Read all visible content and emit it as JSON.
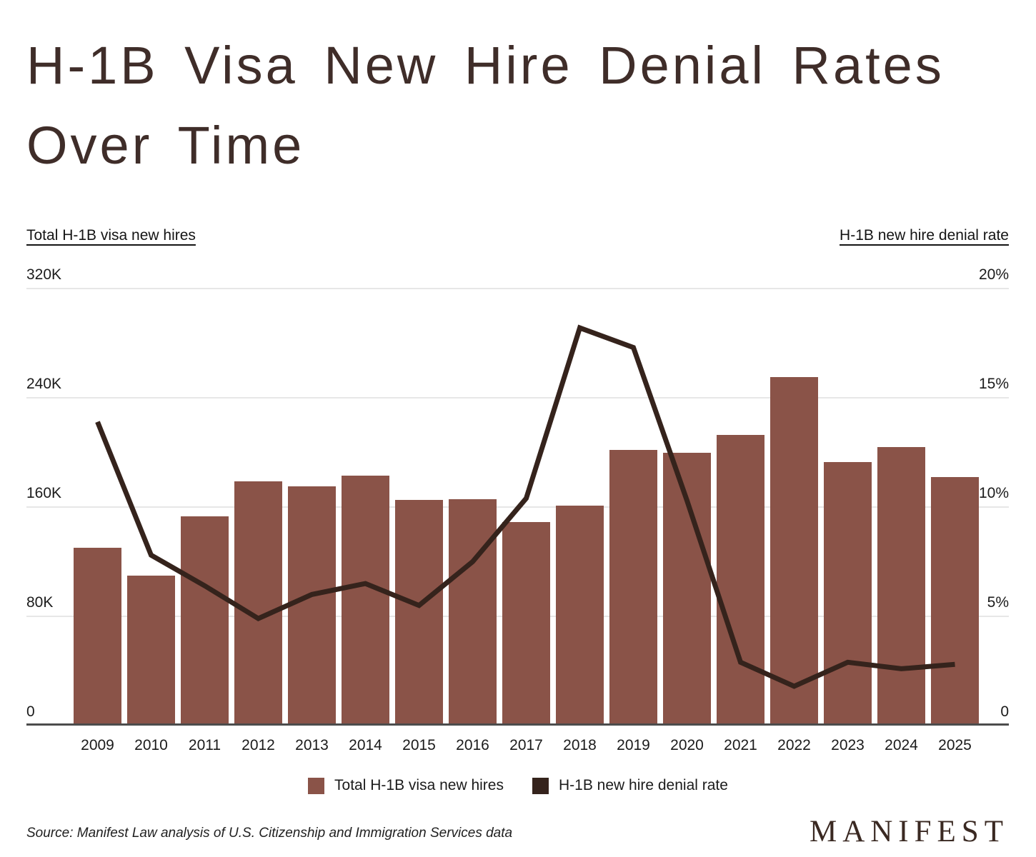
{
  "title": {
    "line1": "H-1B Visa New Hire Denial Rates",
    "line2": "Over Time"
  },
  "axes": {
    "left_header": "Total H-1B visa new hires",
    "right_header": "H-1B new hire denial rate",
    "left_ticks": [
      "320K",
      "240K",
      "160K",
      "80K",
      "0"
    ],
    "right_ticks": [
      "20%",
      "15%",
      "10%",
      "5%",
      "0"
    ]
  },
  "legend": [
    {
      "label": "Total H-1B visa new hires",
      "color": "#8a5348",
      "type": "bar"
    },
    {
      "label": "H-1B new hire denial rate",
      "color": "#35231c",
      "type": "line"
    }
  ],
  "footer": {
    "source": "Source: Manifest Law analysis of U.S. Citizenship and Immigration Services data",
    "logo": "MANIFEST"
  },
  "colors": {
    "bar": "#8a5348",
    "line": "#35231c",
    "gridline": "#e7e7e7",
    "axis_baseline": "#4c4c4c",
    "title_text": "#3f2d29",
    "tick_text": "#1b1b1b"
  },
  "chart_data": {
    "type": "bar",
    "subtype": "bar-and-line-dual-axis",
    "title": "H-1B Visa New Hire Denial Rates Over Time",
    "categories": [
      2009,
      2010,
      2011,
      2012,
      2013,
      2014,
      2015,
      2016,
      2017,
      2018,
      2019,
      2020,
      2021,
      2022,
      2023,
      2024,
      2025
    ],
    "series": [
      {
        "name": "Total H-1B visa new hires",
        "type": "bar",
        "axis": "left",
        "values": [
          130000,
          110000,
          153000,
          179000,
          175000,
          183000,
          165000,
          166000,
          149000,
          161000,
          202000,
          200000,
          213000,
          255000,
          193000,
          204000,
          182000
        ]
      },
      {
        "name": "H-1B new hire denial rate",
        "type": "line",
        "axis": "right",
        "values": [
          13.9,
          7.8,
          6.4,
          4.9,
          6.0,
          6.5,
          5.5,
          7.5,
          10.4,
          18.2,
          17.3,
          10.3,
          2.9,
          1.8,
          2.9,
          2.6,
          2.8
        ]
      }
    ],
    "left_axis": {
      "label": "Total H-1B visa new hires",
      "range": [
        0,
        320000
      ],
      "ticks": [
        0,
        80000,
        160000,
        240000,
        320000
      ]
    },
    "right_axis": {
      "label": "H-1B new hire denial rate",
      "range": [
        0,
        20
      ],
      "ticks": [
        0,
        5,
        10,
        15,
        20
      ],
      "unit": "%"
    },
    "grid": true,
    "legend_position": "bottom"
  }
}
